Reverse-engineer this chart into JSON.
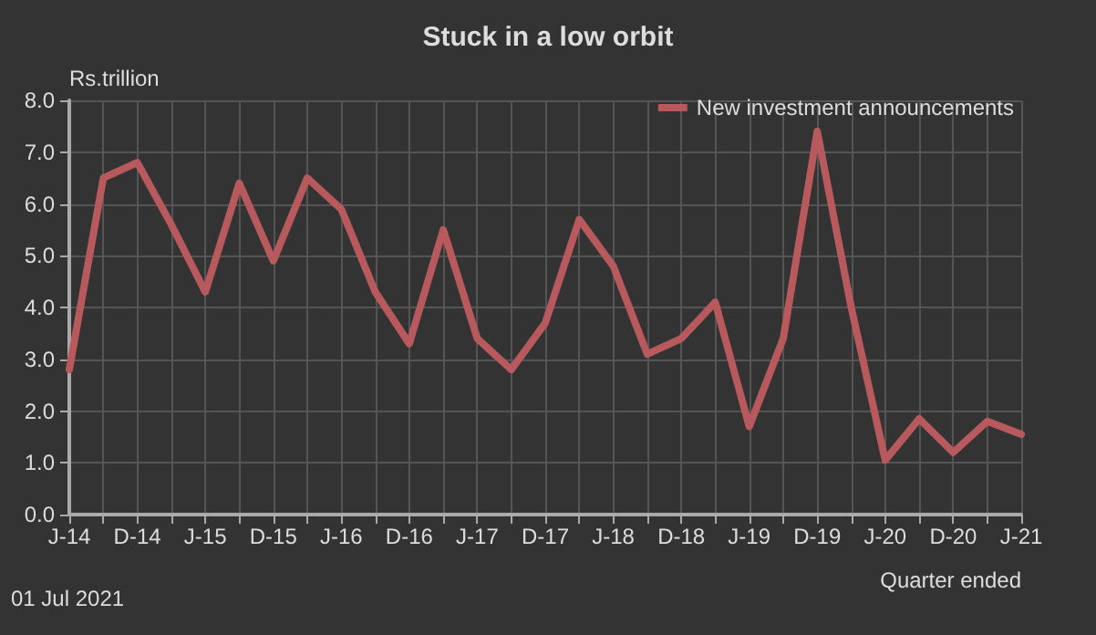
{
  "chart_data": {
    "type": "line",
    "title": "Stuck in a low orbit",
    "xlabel": "Quarter ended",
    "ylabel": "Rs.trillion",
    "categories": [
      "J-14",
      null,
      "D-14",
      null,
      "J-15",
      null,
      "D-15",
      null,
      "J-16",
      null,
      "D-16",
      null,
      "J-17",
      null,
      "D-17",
      null,
      "J-18",
      null,
      "D-18",
      null,
      "J-19",
      null,
      "D-19",
      null,
      "J-20",
      null,
      "D-20",
      null,
      "J-21"
    ],
    "series": [
      {
        "name": "New investment announcements",
        "color": "#b8595d",
        "values": [
          2.8,
          6.5,
          6.8,
          5.6,
          4.3,
          6.4,
          4.9,
          6.5,
          5.9,
          4.3,
          3.3,
          5.5,
          3.4,
          2.8,
          3.7,
          5.7,
          4.8,
          3.1,
          3.4,
          4.1,
          1.7,
          3.4,
          7.4,
          4.0,
          1.05,
          1.85,
          1.2,
          1.8,
          1.55
        ]
      }
    ],
    "ylim": [
      0,
      8
    ],
    "yticks": [
      {
        "value": 0,
        "label": "0.0"
      },
      {
        "value": 1,
        "label": "1.0"
      },
      {
        "value": 2,
        "label": "2.0"
      },
      {
        "value": 3,
        "label": "3.0"
      },
      {
        "value": 4,
        "label": "4.0"
      },
      {
        "value": 5,
        "label": "5.0"
      },
      {
        "value": 6,
        "label": "6.0"
      },
      {
        "value": 7,
        "label": "7.0"
      },
      {
        "value": 8,
        "label": "8.0"
      }
    ],
    "grid": true,
    "legend": "top right",
    "marker": "none",
    "line_style": "solid",
    "annotations": [
      "01 Jul 2021"
    ]
  }
}
